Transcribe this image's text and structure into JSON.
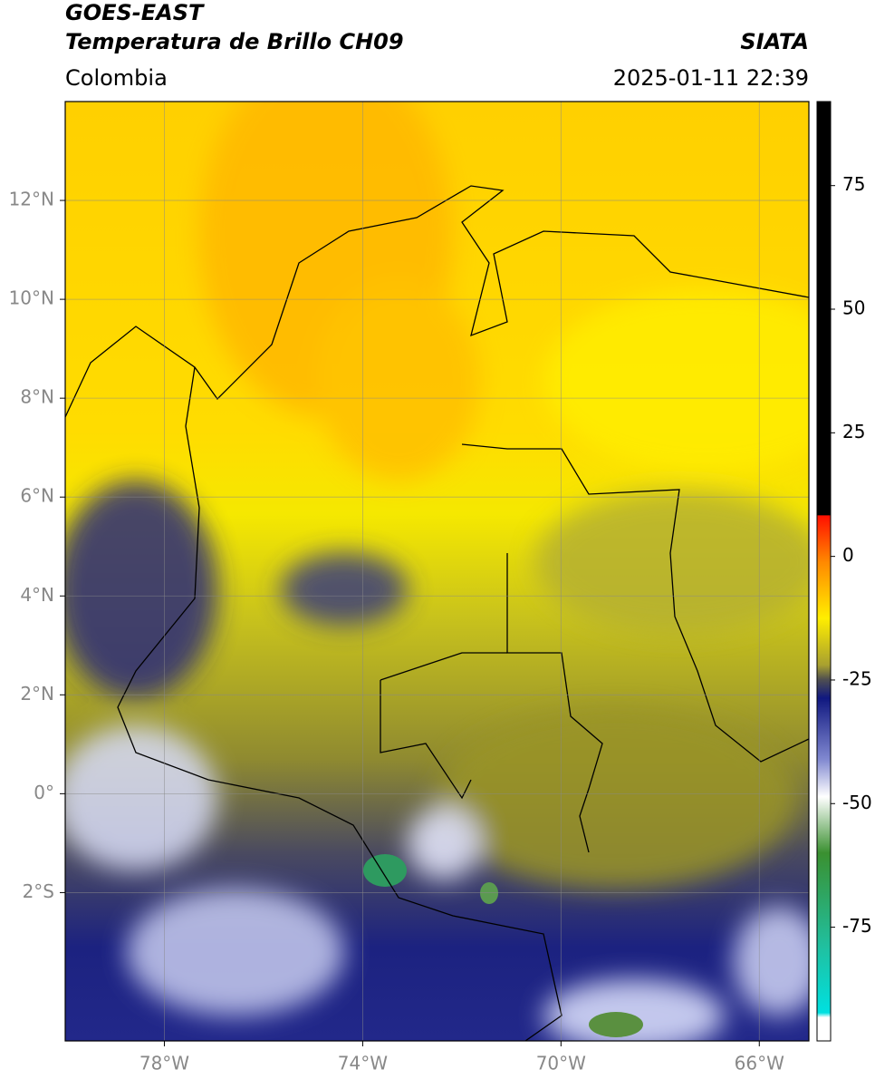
{
  "header": {
    "title": "GOES-EAST",
    "subtitle": "Temperatura de Brillo CH09",
    "region": "Colombia",
    "source": "SIATA",
    "datetime": "2025-01-11 22:39"
  },
  "map": {
    "lon_range": [
      -80,
      -65
    ],
    "lat_range": [
      -5,
      14
    ],
    "lat_ticks": [
      {
        "value": 12,
        "label": "12°N"
      },
      {
        "value": 10,
        "label": "10°N"
      },
      {
        "value": 8,
        "label": "8°N"
      },
      {
        "value": 6,
        "label": "6°N"
      },
      {
        "value": 4,
        "label": "4°N"
      },
      {
        "value": 2,
        "label": "2°N"
      },
      {
        "value": 0,
        "label": "0°"
      },
      {
        "value": -2,
        "label": "2°S"
      }
    ],
    "lon_ticks": [
      {
        "value": -78,
        "label": "78°W"
      },
      {
        "value": -74,
        "label": "74°W"
      },
      {
        "value": -70,
        "label": "70°W"
      },
      {
        "value": -66,
        "label": "66°W"
      }
    ]
  },
  "colorbar": {
    "range": [
      -98,
      92
    ],
    "ticks": [
      75,
      50,
      25,
      0,
      -25,
      -50,
      -75
    ]
  }
}
